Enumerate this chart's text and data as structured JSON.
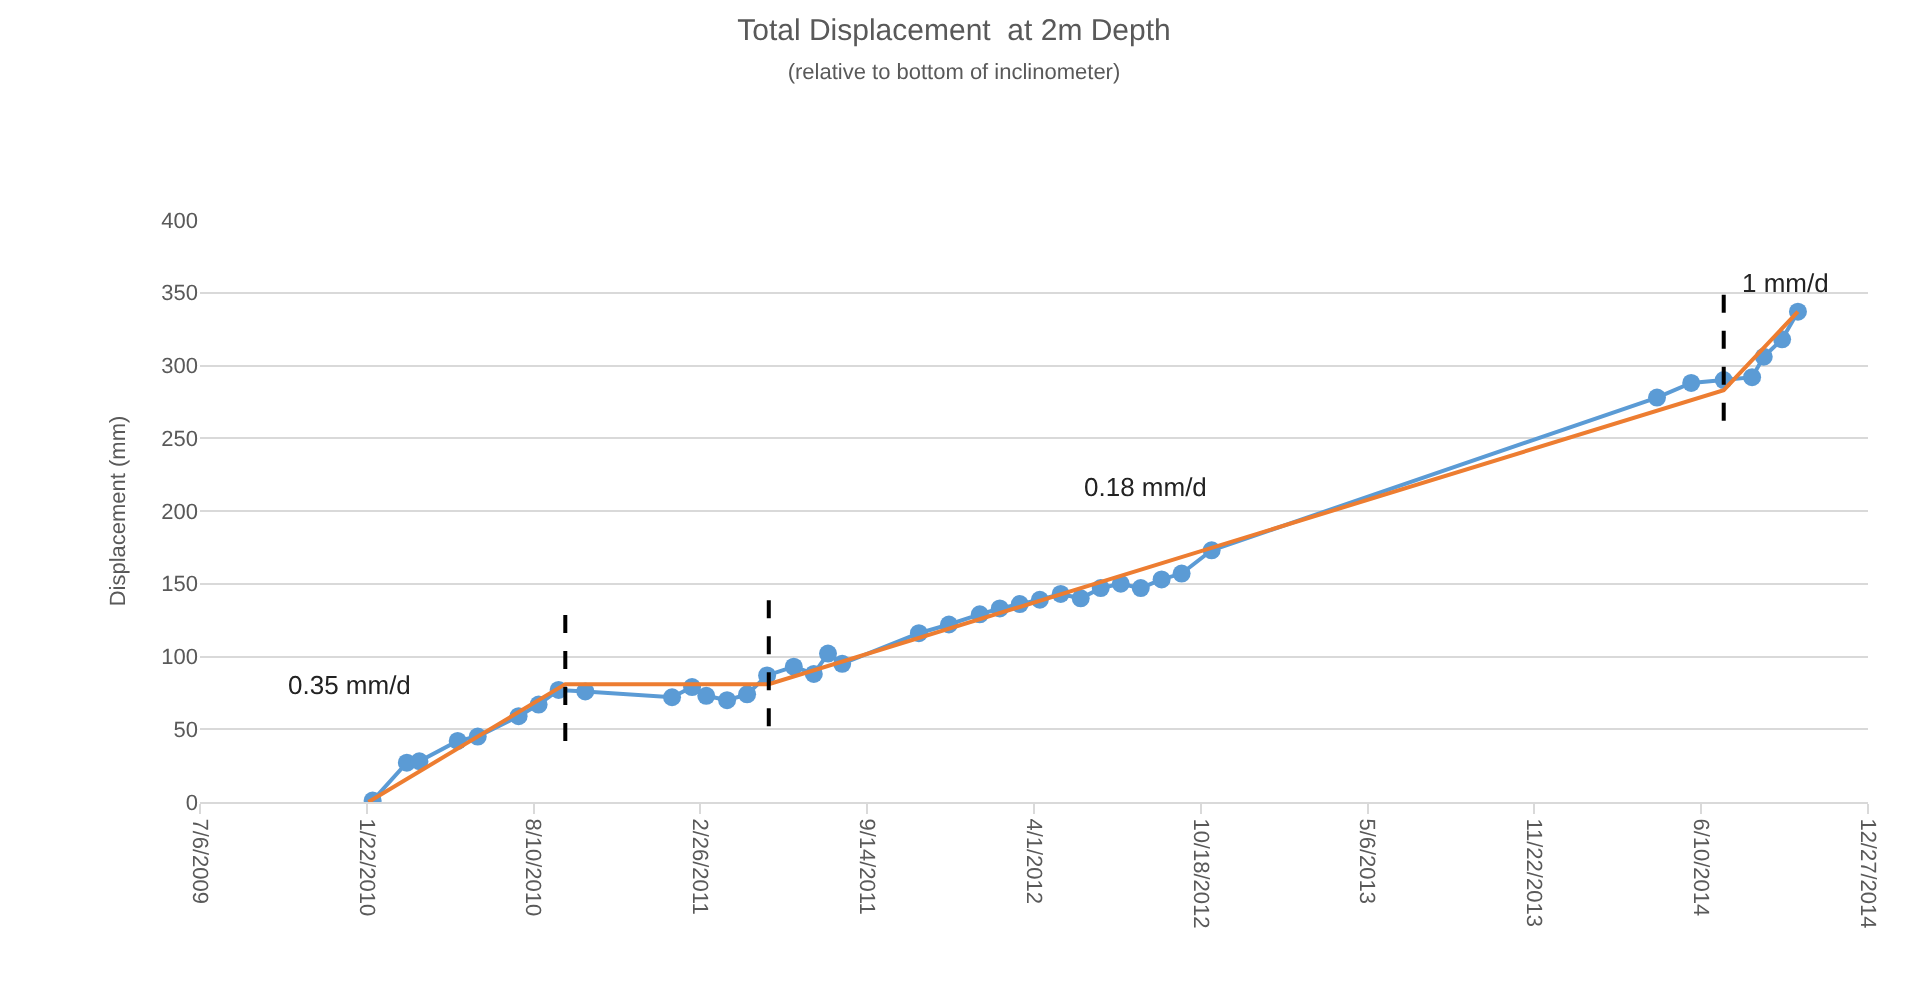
{
  "chart_data": {
    "type": "line",
    "title": "Total Displacement  at 2m Depth",
    "subtitle": "(relative to bottom of inclinometer)",
    "ylabel": "Displacement (mm)",
    "series": [
      {
        "color": "#5b9bd5",
        "marker": "circle",
        "x": [
          "2010-01-29",
          "2010-03-11",
          "2010-03-26",
          "2010-05-11",
          "2010-06-04",
          "2010-07-23",
          "2010-08-16",
          "2010-09-09",
          "2010-10-11",
          "2011-01-23",
          "2011-02-16",
          "2011-03-05",
          "2011-03-30",
          "2011-04-23",
          "2011-05-17",
          "2011-06-18",
          "2011-07-12",
          "2011-07-29",
          "2011-08-15",
          "2011-11-15",
          "2011-12-21",
          "2012-01-27",
          "2012-02-20",
          "2012-03-15",
          "2012-04-08",
          "2012-05-03",
          "2012-05-27",
          "2012-06-20",
          "2012-07-14",
          "2012-08-07",
          "2012-09-01",
          "2012-09-25",
          "2012-10-31",
          "2014-04-18",
          "2014-05-29",
          "2014-07-07",
          "2014-08-10",
          "2014-08-24",
          "2014-09-15",
          "2014-10-04"
        ],
        "values": [
          1,
          27,
          28,
          42,
          45,
          59,
          67,
          77,
          76,
          72,
          79,
          73,
          70,
          74,
          87,
          93,
          88,
          102,
          95,
          116,
          122,
          129,
          133,
          136,
          139,
          143,
          140,
          147,
          150,
          147,
          153,
          157,
          173,
          278,
          288,
          290,
          292,
          306,
          318,
          337
        ]
      },
      {
        "color": "#ed7d31",
        "marker": "none",
        "x": [
          "2010-01-24",
          "2010-09-17",
          "2011-05-19",
          "2014-07-07",
          "2014-10-04"
        ],
        "values": [
          0,
          81,
          81,
          283,
          337
        ]
      }
    ],
    "xlim": [
      "2009-07-06",
      "2014-12-27"
    ],
    "xticks": [
      {
        "value": "2009-07-06",
        "label": "7/6/2009"
      },
      {
        "value": "2010-01-22",
        "label": "1/22/2010"
      },
      {
        "value": "2010-08-10",
        "label": "8/10/2010"
      },
      {
        "value": "2011-02-26",
        "label": "2/26/2011"
      },
      {
        "value": "2011-09-14",
        "label": "9/14/2011"
      },
      {
        "value": "2012-04-01",
        "label": "4/1/2012"
      },
      {
        "value": "2012-10-18",
        "label": "10/18/2012"
      },
      {
        "value": "2013-05-06",
        "label": "5/6/2013"
      },
      {
        "value": "2013-11-22",
        "label": "11/22/2013"
      },
      {
        "value": "2014-06-10",
        "label": "6/10/2014"
      },
      {
        "value": "2014-12-27",
        "label": "12/27/2014"
      }
    ],
    "ylim": [
      0,
      400
    ],
    "yticks": [
      0,
      50,
      100,
      150,
      200,
      250,
      300,
      350,
      400
    ],
    "grid": "y",
    "line_style": "solid",
    "ref_lines": [
      {
        "axis": "x",
        "value": "2010-09-17",
        "line_style": "dashed",
        "color": "#000000"
      },
      {
        "axis": "x",
        "value": "2011-05-19",
        "line_style": "dashed",
        "color": "#000000"
      },
      {
        "axis": "x",
        "value": "2014-07-07",
        "line_style": "dashed",
        "color": "#000000"
      }
    ],
    "annotations": [
      "0.35 mm/d",
      "0.18 mm/d",
      "1 mm/d"
    ]
  }
}
